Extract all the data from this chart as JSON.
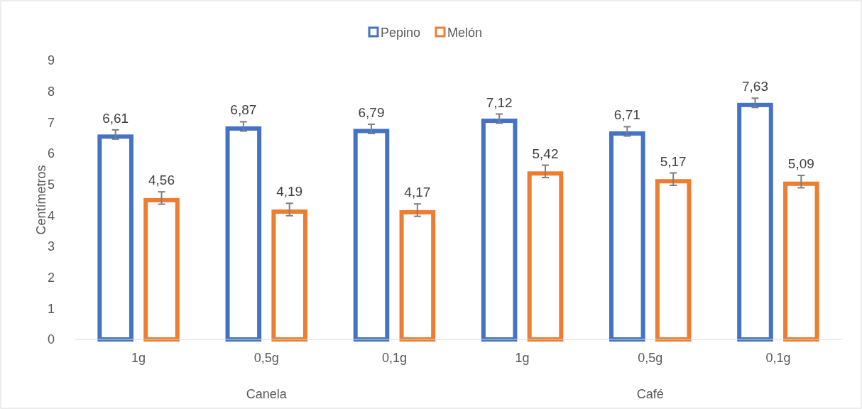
{
  "chart_data": {
    "type": "bar",
    "ylabel": "Centímetros",
    "categories": [
      "1g",
      "0,5g",
      "0,1g",
      "1g",
      "0,5g",
      "0,1g"
    ],
    "series": [
      {
        "name": "Pepino",
        "color": "#4472c4",
        "values": [
          6.61,
          6.87,
          6.79,
          7.12,
          6.71,
          7.63
        ],
        "value_labels": [
          "6,61",
          "6,87",
          "6,79",
          "7,12",
          "6,71",
          "7,63"
        ],
        "errors": [
          0.15,
          0.15,
          0.15,
          0.15,
          0.15,
          0.15
        ]
      },
      {
        "name": "Melón",
        "color": "#ed7d31",
        "values": [
          4.56,
          4.19,
          4.17,
          5.42,
          5.17,
          5.09
        ],
        "value_labels": [
          "4,56",
          "4,19",
          "4,17",
          "5,42",
          "5,17",
          "5,09"
        ],
        "errors": [
          0.2,
          0.2,
          0.2,
          0.2,
          0.2,
          0.2
        ]
      }
    ],
    "ylim": [
      0,
      9
    ],
    "yticks": [
      0,
      1,
      2,
      3,
      4,
      5,
      6,
      7,
      8,
      9
    ],
    "grid": false,
    "legend": "top",
    "annotations": [
      "Canela",
      "Café"
    ]
  }
}
